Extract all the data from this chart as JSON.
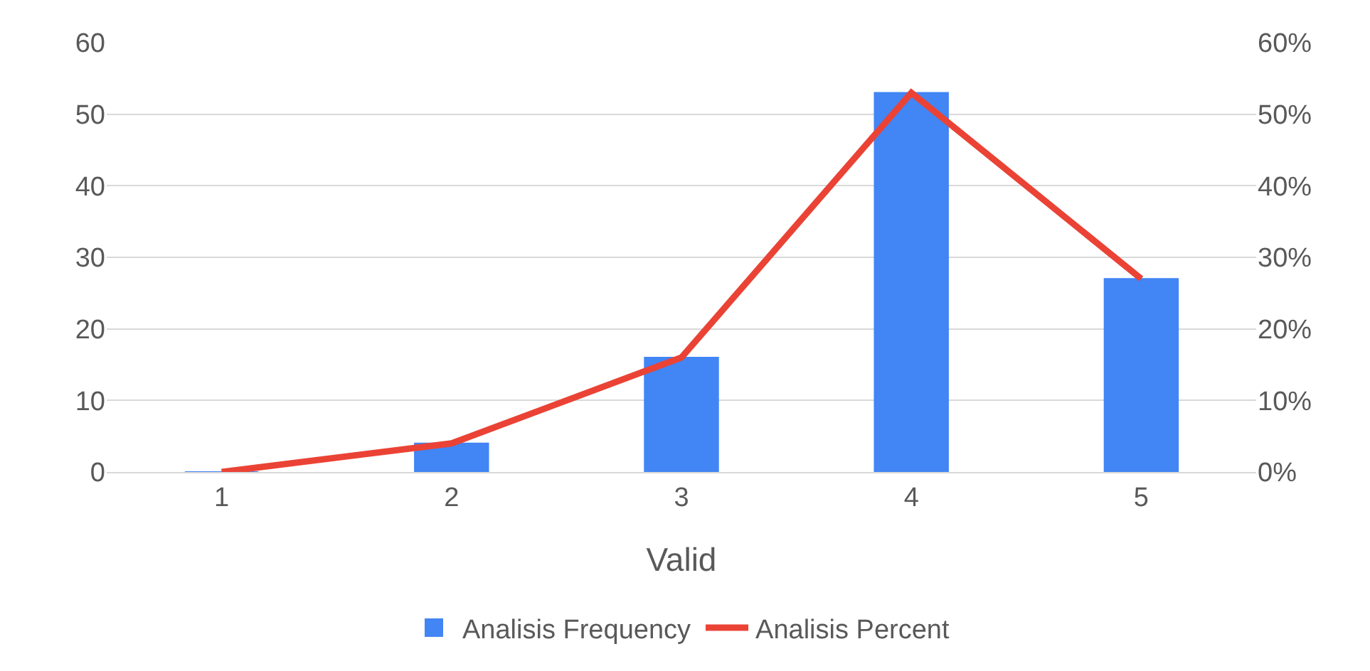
{
  "chart_data": {
    "type": "bar",
    "xlabel": "Valid",
    "categories": [
      "1",
      "2",
      "3",
      "4",
      "5"
    ],
    "series": [
      {
        "name": "Analisis Frequency",
        "color": "#4285f4",
        "values": [
          0,
          4,
          16,
          53,
          27
        ]
      },
      {
        "name": "Analisis Percent",
        "type": "line",
        "axis": "y2",
        "color": "#ea4335",
        "marker": "none",
        "line_style": "solid",
        "values": [
          0,
          4,
          16,
          53,
          27
        ]
      }
    ],
    "ylim": [
      0,
      60
    ],
    "yticks": [
      0,
      10,
      20,
      30,
      40,
      50,
      60
    ],
    "y2lim": [
      0,
      60
    ],
    "y2ticks": [
      {
        "value": 0,
        "label": "0%"
      },
      {
        "value": 10,
        "label": "10%"
      },
      {
        "value": 20,
        "label": "20%"
      },
      {
        "value": 30,
        "label": "30%"
      },
      {
        "value": 40,
        "label": "40%"
      },
      {
        "value": 50,
        "label": "50%"
      },
      {
        "value": 60,
        "label": "60%"
      }
    ],
    "grid": "y",
    "legend": "bottom"
  }
}
